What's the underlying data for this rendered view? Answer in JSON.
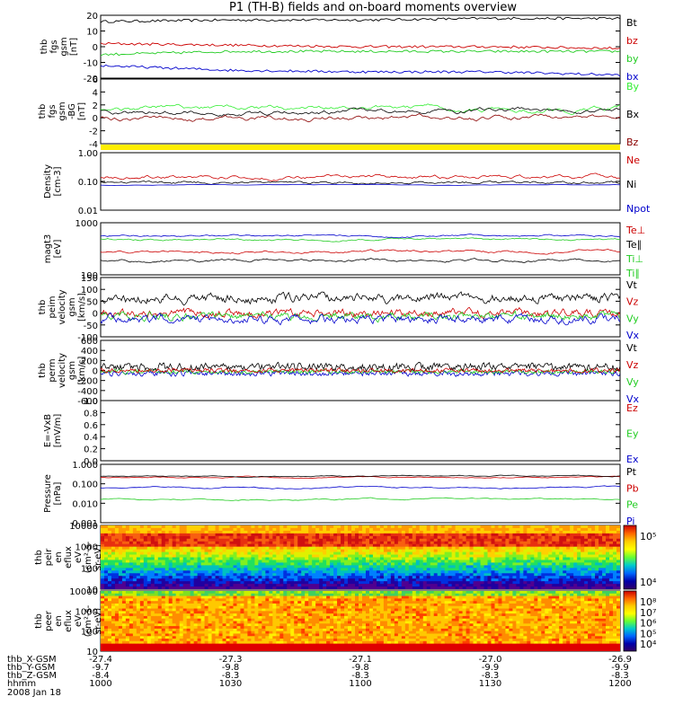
{
  "title": "P1 (TH-B) fields and on-board moments overview",
  "colors": {
    "black": "#000000",
    "red": "#cc0000",
    "green": "#22cc22",
    "blue": "#0000cc",
    "darkred": "#8b0000",
    "brightgreen": "#33ee33",
    "yellow": "#ffee00"
  },
  "panels": [
    {
      "id": "fgs",
      "ylabel": [
        "thb",
        "fgs",
        "gsm",
        "[nT]"
      ],
      "ticks": [
        "20",
        "10",
        "0",
        "-10",
        "-20"
      ],
      "legend": [
        {
          "label": "Bt",
          "color": "#000000"
        },
        {
          "label": "bz",
          "color": "#cc0000"
        },
        {
          "label": "by",
          "color": "#22cc22"
        },
        {
          "label": "bx",
          "color": "#0000cc"
        }
      ]
    },
    {
      "id": "fgs_dtrend",
      "ylabel": [
        "thb",
        "fgs",
        "gsm",
        "-BG",
        "[nT]"
      ],
      "ticks": [
        "6",
        "4",
        "2",
        "0",
        "-2",
        "-4"
      ],
      "legend": [
        {
          "label": "By",
          "color": "#33ee33"
        },
        {
          "label": "Bx",
          "color": "#000000"
        },
        {
          "label": "Bz",
          "color": "#8b0000"
        }
      ]
    },
    {
      "id": "density",
      "ylabel": [
        "Density",
        "[cm-3]"
      ],
      "ticks": [
        "1.00",
        "0.10",
        "0.01"
      ],
      "legend": [
        {
          "label": "Ne",
          "color": "#cc0000"
        },
        {
          "label": "Ni",
          "color": "#000000"
        },
        {
          "label": "Npot",
          "color": "#0000cc"
        }
      ]
    },
    {
      "id": "temp",
      "ylabel": [
        "magt3",
        "[eV]"
      ],
      "ticks": [
        "1000",
        "100"
      ],
      "legend": [
        {
          "label": "Te⊥",
          "color": "#cc0000"
        },
        {
          "label": "Te∥",
          "color": "#000000"
        },
        {
          "label": "Ti⊥",
          "color": "#22cc22"
        },
        {
          "label": "Ti∥",
          "color": "#22cc22"
        }
      ]
    },
    {
      "id": "vel_peim",
      "ylabel": [
        "thb",
        "peim",
        "velocity",
        "gsm",
        "[km/s]"
      ],
      "ticks": [
        "150",
        "100",
        "50",
        "0",
        "-50",
        "-100"
      ],
      "legend": [
        {
          "label": "Vt",
          "color": "#000000"
        },
        {
          "label": "Vz",
          "color": "#cc0000"
        },
        {
          "label": "Vy",
          "color": "#22cc22"
        },
        {
          "label": "Vx",
          "color": "#0000cc"
        }
      ]
    },
    {
      "id": "vel_perm",
      "ylabel": [
        "thb",
        "perm",
        "velocity",
        "gsm",
        "[km/s]"
      ],
      "ticks": [
        "600",
        "400",
        "200",
        "0",
        "-200",
        "-400",
        "-600"
      ],
      "legend": [
        {
          "label": "Vt",
          "color": "#000000"
        },
        {
          "label": "Vz",
          "color": "#cc0000"
        },
        {
          "label": "Vy",
          "color": "#22cc22"
        },
        {
          "label": "Vx",
          "color": "#0000cc"
        }
      ]
    },
    {
      "id": "efield",
      "ylabel": [
        "E=-VxB",
        "[mV/m]"
      ],
      "ticks": [
        "1.0",
        "0.8",
        "0.6",
        "0.4",
        "0.2",
        "0.0"
      ],
      "legend": [
        {
          "label": "Ez",
          "color": "#cc0000"
        },
        {
          "label": "Ey",
          "color": "#22cc22"
        },
        {
          "label": "Ex",
          "color": "#0000cc"
        }
      ]
    },
    {
      "id": "pressure",
      "ylabel": [
        "Pressure",
        "[nPa]"
      ],
      "ticks": [
        "1.000",
        "0.100",
        "0.010",
        "0.001"
      ],
      "legend": [
        {
          "label": "Pt",
          "color": "#000000"
        },
        {
          "label": "Pb",
          "color": "#cc0000"
        },
        {
          "label": "Pe",
          "color": "#22cc22"
        },
        {
          "label": "Pi",
          "color": "#0000cc"
        }
      ]
    },
    {
      "id": "peir",
      "ylabel": [
        "thb",
        "peir",
        "en",
        "eflux",
        "eV",
        "(cm²-s-",
        "sr-eV)"
      ],
      "ticks": [
        "10000",
        "1000",
        "100",
        "10"
      ],
      "colorbar_ticks": [
        "10⁵",
        "10⁴"
      ]
    },
    {
      "id": "peer",
      "ylabel": [
        "thb",
        "peer",
        "en",
        "eflux",
        "eV",
        "(cm²-s-",
        "sr-eV)"
      ],
      "ticks": [
        "10000",
        "1000",
        "100",
        "10"
      ],
      "colorbar_ticks": [
        "10⁸",
        "10⁷",
        "10⁶",
        "10⁵",
        "10⁴"
      ]
    }
  ],
  "xaxis": {
    "rows": [
      {
        "label": "thb_X-GSM",
        "values": [
          "-27.4",
          "-27.3",
          "-27.1",
          "-27.0",
          "-26.9"
        ]
      },
      {
        "label": "thb_Y-GSM",
        "values": [
          "-9.7",
          "-9.8",
          "-9.8",
          "-9.9",
          "-9.9"
        ]
      },
      {
        "label": "thb_Z-GSM",
        "values": [
          "-8.4",
          "-8.3",
          "-8.3",
          "-8.3",
          "-8.3"
        ]
      },
      {
        "label": "hhmm",
        "values": [
          "1000",
          "1030",
          "1100",
          "1130",
          "1200"
        ]
      }
    ],
    "date": "2008 Jan 18"
  },
  "chart_data": {
    "type": "line",
    "title": "P1 (TH-B) fields and on-board moments overview",
    "x": [
      "1000",
      "1030",
      "1100",
      "1130",
      "1200"
    ],
    "xlabel": "hhmm",
    "series": [
      {
        "name": "Bt",
        "x": [
          "1000",
          "1030",
          "1100",
          "1130",
          "1200"
        ],
        "values": [
          16,
          17,
          17,
          18,
          18
        ]
      },
      {
        "name": "bz",
        "x": [
          "1000",
          "1030",
          "1100",
          "1130",
          "1200"
        ],
        "values": [
          2,
          1,
          0,
          0,
          -1
        ]
      },
      {
        "name": "by",
        "x": [
          "1000",
          "1030",
          "1100",
          "1130",
          "1200"
        ],
        "values": [
          -5,
          -3,
          -3,
          -3,
          -3
        ]
      },
      {
        "name": "bx",
        "x": [
          "1000",
          "1030",
          "1100",
          "1130",
          "1200"
        ],
        "values": [
          -12,
          -15,
          -16,
          -16,
          -18
        ]
      }
    ],
    "ylim": [
      -20,
      20
    ],
    "grid": false
  }
}
